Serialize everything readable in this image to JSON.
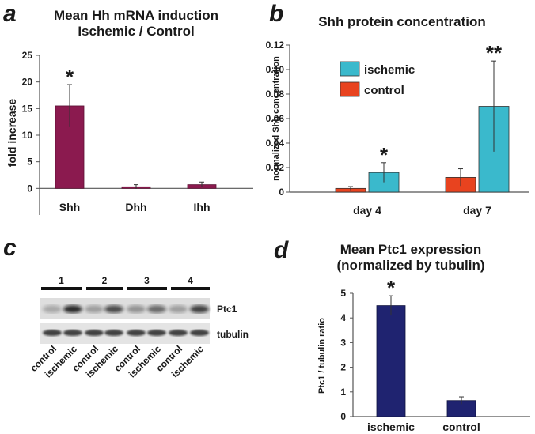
{
  "panels": {
    "a": {
      "label": "a"
    },
    "b": {
      "label": "b"
    },
    "c": {
      "label": "c"
    },
    "d": {
      "label": "d"
    }
  },
  "chart_data": [
    {
      "id": "a",
      "type": "bar",
      "title_lines": [
        "Mean Hh mRNA induction",
        "Ischemic / Control"
      ],
      "ylabel": "fold increase",
      "categories": [
        "Shh",
        "Dhh",
        "Ihh"
      ],
      "values": [
        15.5,
        0.3,
        0.7
      ],
      "errors": [
        4,
        0.4,
        0.5
      ],
      "annotations": [
        "*",
        "",
        ""
      ],
      "ylim": [
        -5,
        25
      ],
      "yticks": [
        0,
        5,
        10,
        15,
        20,
        25
      ],
      "color": "#8b1a4f"
    },
    {
      "id": "b",
      "type": "bar",
      "title": "Shh protein concentration",
      "ylabel": "normalized Shh concentration",
      "categories": [
        "day 4",
        "day 7"
      ],
      "series": [
        {
          "name": "control",
          "values": [
            0.003,
            0.012
          ],
          "errors": [
            0.0015,
            0.007
          ],
          "color": "#e8431f",
          "annotations": [
            "",
            ""
          ]
        },
        {
          "name": "ischemic",
          "values": [
            0.016,
            0.07
          ],
          "errors": [
            0.008,
            0.037
          ],
          "color": "#3ab9cc",
          "annotations": [
            "*",
            "**"
          ]
        }
      ],
      "legend_order": [
        "ischemic",
        "control"
      ],
      "ylim": [
        0,
        0.12
      ],
      "yticks": [
        "0",
        "0.02",
        "0.04",
        "0.06",
        "0.08",
        "0.10",
        "0.12"
      ]
    },
    {
      "id": "d",
      "type": "bar",
      "title_lines": [
        "Mean Ptc1 expression",
        "(normalized by tubulin)"
      ],
      "ylabel": "Ptc1 / tubulin ratio",
      "categories": [
        "ischemic",
        "control"
      ],
      "values": [
        4.5,
        0.65
      ],
      "errors": [
        0.4,
        0.15
      ],
      "annotations": [
        "*",
        ""
      ],
      "ylim": [
        0,
        5
      ],
      "yticks": [
        0,
        1,
        2,
        3,
        4,
        5
      ],
      "color": "#1f2370"
    }
  ],
  "blot": {
    "groups": [
      "1",
      "2",
      "3",
      "4"
    ],
    "rows": [
      "Ptc1",
      "tubulin"
    ],
    "lanes": [
      "control",
      "ischemic",
      "control",
      "ischemic",
      "control",
      "ischemic",
      "control",
      "ischemic"
    ]
  }
}
